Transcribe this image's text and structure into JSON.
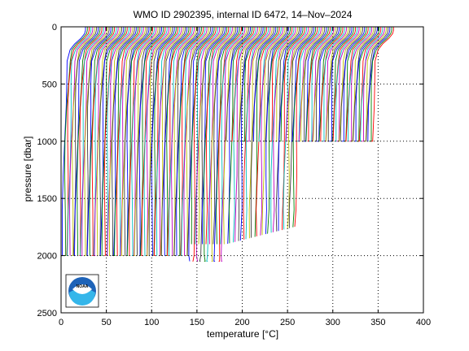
{
  "chart_data": {
    "type": "line",
    "title": "WMO ID 2902395, internal ID 6472, 14–Nov–2024",
    "xlabel": "temperature [°C]",
    "ylabel": "pressure [dbar]",
    "xlim": [
      0,
      400
    ],
    "ylim": [
      0,
      2500
    ],
    "y_reversed": true,
    "grid": true,
    "grid_style": "dotted",
    "xticks": [
      0,
      50,
      100,
      150,
      200,
      250,
      300,
      350,
      400
    ],
    "yticks": [
      0,
      500,
      1000,
      1500,
      2000,
      2500
    ],
    "series_description": "Temperature profiles, each cycle offset by ~2 °C",
    "profile_count": 171,
    "profile_offset_step": 2.0,
    "first_profile_surface_temperature": 27,
    "first_profile_deep_temperature": 2,
    "deep_pressure_early": 2000,
    "deep_pressure_late": 1000,
    "deep_pressure_middle": [
      2050,
      1900
    ],
    "logo": "noaa-logo",
    "series_colors": [
      "#0000ff",
      "#008000",
      "#ff0000",
      "#00bfbf",
      "#bf00bf",
      "#bfbf00",
      "#404040"
    ]
  }
}
